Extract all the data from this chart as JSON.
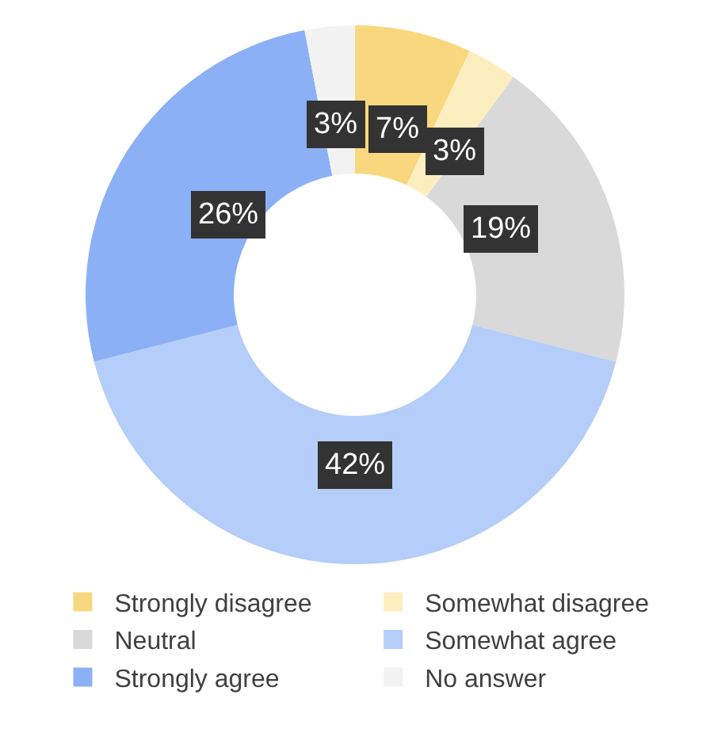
{
  "chart_data": {
    "type": "donut",
    "categories": [
      "Strongly disagree",
      "Somewhat disagree",
      "Neutral",
      "Somewhat agree",
      "Strongly agree",
      "No answer"
    ],
    "values": [
      7,
      3,
      19,
      42,
      26,
      3
    ],
    "value_labels": [
      "7%",
      "3%",
      "19%",
      "42%",
      "26%",
      "3%"
    ],
    "colors": [
      "#f9d77e",
      "#fdeebf",
      "#d9d9d9",
      "#b4cdf9",
      "#8cb0f5",
      "#f2f2f2"
    ],
    "legend": "bottom"
  }
}
